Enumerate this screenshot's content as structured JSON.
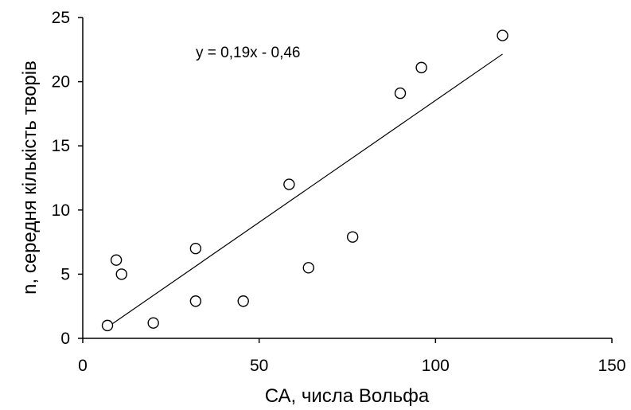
{
  "chart_data": {
    "type": "scatter",
    "title": "",
    "xlabel": "СА, числа Вольфа",
    "ylabel": "n, середня кількість творів",
    "xlim": [
      0,
      150
    ],
    "ylim": [
      0,
      25
    ],
    "x_ticks": [
      0,
      50,
      100,
      150
    ],
    "y_ticks": [
      0,
      5,
      10,
      15,
      20,
      25
    ],
    "x_tick_labels": [
      "0",
      "50",
      "100",
      "150"
    ],
    "y_tick_labels": [
      "0",
      "5",
      "10",
      "15",
      "20",
      "25"
    ],
    "grid": false,
    "legend": "none",
    "points": [
      {
        "x": 7,
        "y": 1
      },
      {
        "x": 9.5,
        "y": 6.1
      },
      {
        "x": 11,
        "y": 5
      },
      {
        "x": 20,
        "y": 1.2
      },
      {
        "x": 32,
        "y": 7
      },
      {
        "x": 32,
        "y": 2.9
      },
      {
        "x": 45.5,
        "y": 2.9
      },
      {
        "x": 58.5,
        "y": 12
      },
      {
        "x": 64,
        "y": 5.5
      },
      {
        "x": 76.5,
        "y": 7.9
      },
      {
        "x": 90,
        "y": 19.1
      },
      {
        "x": 96,
        "y": 21.1
      },
      {
        "x": 119,
        "y": 23.6
      }
    ],
    "trendline": {
      "equation": "y = 0,19x - 0,46",
      "slope": 0.19,
      "intercept": -0.46,
      "x_range": [
        7,
        119
      ]
    },
    "colors": {
      "marker_stroke": "#000000",
      "line": "#000000",
      "axis": "#000000"
    }
  }
}
